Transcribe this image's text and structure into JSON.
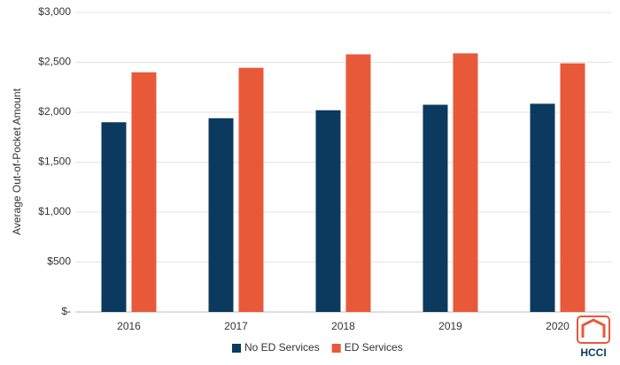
{
  "chart_data": {
    "type": "bar",
    "y_label": "Average Out-of-Pocket Amount",
    "categories": [
      "2016",
      "2017",
      "2018",
      "2019",
      "2020"
    ],
    "series": [
      {
        "name": "No ED Services",
        "color": "#0b3a5e",
        "values": [
          1900,
          1940,
          2020,
          2075,
          2085
        ]
      },
      {
        "name": "ED Services",
        "color": "#e8593a",
        "values": [
          2400,
          2445,
          2580,
          2590,
          2490
        ]
      }
    ],
    "ylim": [
      0,
      3000
    ],
    "yticks": [
      {
        "value": 0,
        "label": "$-"
      },
      {
        "value": 500,
        "label": "$500"
      },
      {
        "value": 1000,
        "label": "$1,000"
      },
      {
        "value": 1500,
        "label": "$1,500"
      },
      {
        "value": 2000,
        "label": "$2,000"
      },
      {
        "value": 2500,
        "label": "$2,500"
      },
      {
        "value": 3000,
        "label": "$3,000"
      }
    ],
    "grid": true,
    "legend": "bottom",
    "logo": "HCCI"
  }
}
